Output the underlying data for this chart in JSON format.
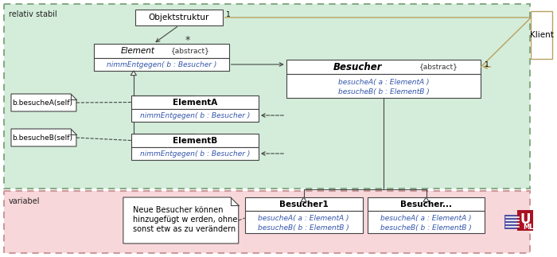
{
  "bg_stable_color": "#d4edda",
  "bg_variable_color": "#f8d7da",
  "stable_label": "relativ stabil",
  "variable_label": "variabel",
  "klient_label": "Klient",
  "objektstruktur_label": "Objektstruktur",
  "element_label": "Element",
  "element_abstract": "{abstract}",
  "element_method": "nimmEntgegen( b : Besucher )",
  "elementA_label": "ElementA",
  "elementA_method": "nimmEntgegen( b : Besucher )",
  "elementB_label": "ElementB",
  "elementB_method": "nimmEntgegen( b : Besucher )",
  "besucher_label": "Besucher",
  "besucher_abstract": "{abstract}",
  "besucher_method1": "besucheA( a : ElementA )",
  "besucher_method2": "besucheB( b : ElementB )",
  "note1_text": "b.besucheA(self)",
  "note2_text": "b.besucheB(self)",
  "note3_line1": "Neue Besucher können",
  "note3_line2": "hinzugefügt w erden, ohne",
  "note3_line3": "sonst etw as zu verändern",
  "besucher1_label": "Besucher1",
  "besucher1_method1": "besucheA( a : ElementA )",
  "besucher1_method2": "besucheB( b : ElementB )",
  "besucher_dots_label": "Besucher...",
  "besucher_dots_method1": "besucheA( a : ElementA )",
  "besucher_dots_method2": "besucheB( b : ElementB )",
  "arrow_color": "#b8a060",
  "line_color": "#808080"
}
